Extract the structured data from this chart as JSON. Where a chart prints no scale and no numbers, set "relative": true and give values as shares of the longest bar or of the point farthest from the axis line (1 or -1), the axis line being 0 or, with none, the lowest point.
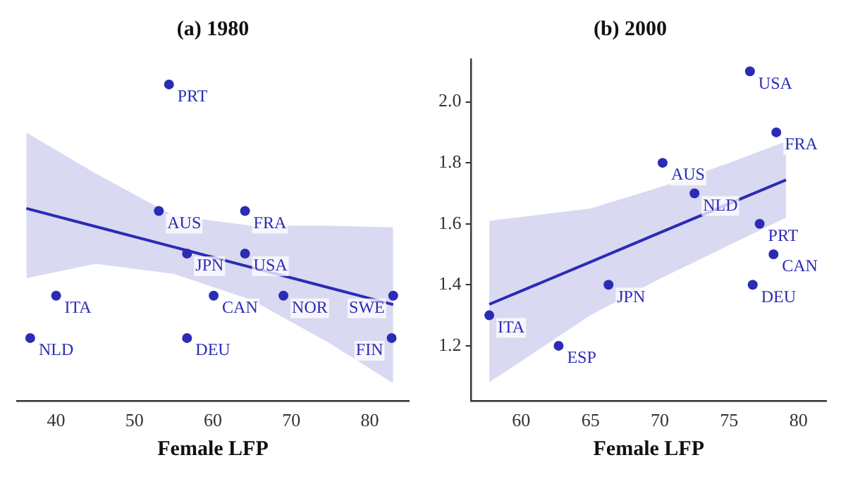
{
  "chart_data": [
    {
      "type": "scatter",
      "title": "(a) 1980",
      "xlabel": "Female LFP",
      "relative": true,
      "xlim": [
        35,
        85
      ],
      "xticks": [
        40,
        50,
        60,
        70,
        80
      ],
      "tick_labels": "x",
      "grid": false,
      "legend": false,
      "series": [
        {
          "marker": "circle",
          "color": "#2b2bb5",
          "x": [
            54.4,
            64.1,
            53.1,
            64.1,
            56.7,
            40,
            60.1,
            69,
            83,
            36.7,
            56.7,
            82.8
          ],
          "values": [
            1,
            0.6,
            0.6,
            0.465,
            0.465,
            0.332,
            0.332,
            0.332,
            0.332,
            0.198,
            0.198,
            0.198
          ]
        },
        {
          "type": "line",
          "color": "#2b2bb5",
          "x": [
            36.2,
            45,
            55,
            65,
            75,
            83
          ],
          "values": [
            0.608,
            0.551,
            0.486,
            0.421,
            0.356,
            0.304
          ],
          "lower": [
            0.387,
            0.433,
            0.401,
            0.318,
            0.18,
            0.055
          ],
          "upper": [
            0.848,
            0.719,
            0.585,
            0.553,
            0.553,
            0.548
          ]
        }
      ],
      "annotations": [
        {
          "text": "PRT",
          "x": 54.4,
          "y": 1
        },
        {
          "text": "FRA",
          "x": 64.1,
          "y": 0.6
        },
        {
          "text": "AUS",
          "x": 53.1,
          "y": 0.6
        },
        {
          "text": "USA",
          "x": 64.1,
          "y": 0.465
        },
        {
          "text": "JPN",
          "x": 56.7,
          "y": 0.465
        },
        {
          "text": "ITA",
          "x": 40,
          "y": 0.332
        },
        {
          "text": "CAN",
          "x": 60.1,
          "y": 0.332
        },
        {
          "text": "NOR",
          "x": 69,
          "y": 0.332
        },
        {
          "text": "SWE",
          "x": 83,
          "y": 0.332
        },
        {
          "text": "NLD",
          "x": 36.7,
          "y": 0.198
        },
        {
          "text": "DEU",
          "x": 56.7,
          "y": 0.198
        },
        {
          "text": "FIN",
          "x": 82.8,
          "y": 0.198
        }
      ]
    },
    {
      "type": "scatter",
      "title": "(b) 2000",
      "xlabel": "Female LFP",
      "xlim": [
        56.4,
        82
      ],
      "xticks": [
        60,
        65,
        70,
        75,
        80
      ],
      "ylim": [
        1.02,
        2.14
      ],
      "yticks": [
        1.2,
        1.4,
        1.6,
        1.8,
        {
          "value": 2,
          "label": "2.0"
        }
      ],
      "grid": false,
      "legend": false,
      "series": [
        {
          "marker": "circle",
          "color": "#2b2bb5",
          "x": [
            57.7,
            62.7,
            66.3,
            70.2,
            72.5,
            76.5,
            78.4,
            77.2,
            76.7,
            78.2
          ],
          "values": [
            1.3,
            1.2,
            1.4,
            1.8,
            1.7,
            2.1,
            1.9,
            1.6,
            1.4,
            1.5
          ]
        },
        {
          "type": "line",
          "color": "#2b2bb5",
          "x": [
            57.7,
            65,
            70,
            75,
            79.1
          ],
          "values": [
            1.336,
            1.475,
            1.571,
            1.666,
            1.744
          ],
          "lower": [
            1.08,
            1.3,
            1.42,
            1.53,
            1.62
          ],
          "upper": [
            1.61,
            1.65,
            1.72,
            1.8,
            1.87
          ]
        }
      ],
      "annotations": [
        {
          "text": "ITA",
          "x": 57.7,
          "y": 1.3
        },
        {
          "text": "ESP",
          "x": 62.7,
          "y": 1.2
        },
        {
          "text": "JPN",
          "x": 66.3,
          "y": 1.4
        },
        {
          "text": "AUS",
          "x": 70.2,
          "y": 1.8
        },
        {
          "text": "NLD",
          "x": 72.5,
          "y": 1.7
        },
        {
          "text": "USA",
          "x": 76.5,
          "y": 2.1
        },
        {
          "text": "FRA",
          "x": 78.4,
          "y": 1.9
        },
        {
          "text": "PRT",
          "x": 77.2,
          "y": 1.6
        },
        {
          "text": "DEU",
          "x": 76.7,
          "y": 1.4
        },
        {
          "text": "CAN",
          "x": 78.2,
          "y": 1.5
        }
      ]
    }
  ]
}
